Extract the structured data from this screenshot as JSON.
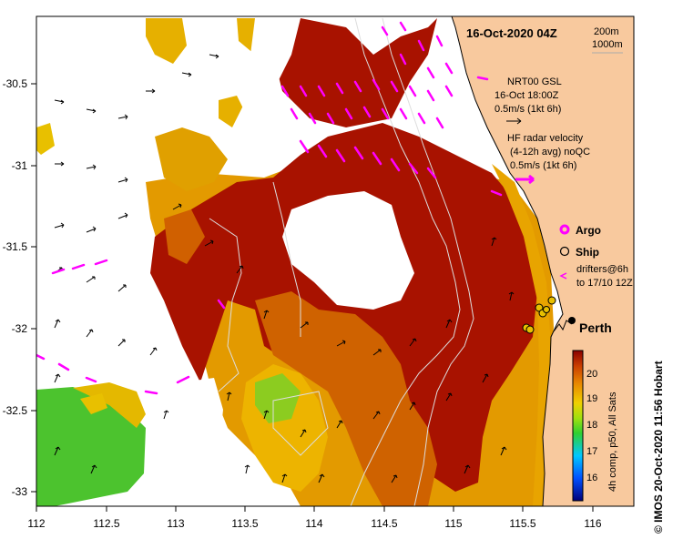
{
  "map": {
    "title": "16-Oct-2020 04Z",
    "depth_contours": [
      "200m",
      "1000m"
    ],
    "longitude_ticks": [
      "112",
      "112.5",
      "113",
      "113.5",
      "114",
      "114.5",
      "115",
      "115.5",
      "116"
    ],
    "latitude_ticks": [
      "-30.5",
      "-31",
      "-31.5",
      "-32",
      "-32.5",
      "-33"
    ],
    "model_legend": {
      "name": "NRT00 GSL",
      "time": "16-Oct 18:00Z",
      "scale": "0.5m/s (1kt 6h)"
    },
    "radar_legend": {
      "name": "HF radar velocity",
      "avg": "(4-12h avg) noQC",
      "scale": "0.5m/s (1kt 6h)"
    },
    "symbols": {
      "argo": "Argo",
      "ship": "Ship",
      "drifters_line1": "drifters@6h",
      "drifters_line2": "to 17/10 12Z"
    },
    "city": "Perth",
    "colorbar": {
      "ticks": [
        "20",
        "19",
        "18",
        "17",
        "16"
      ],
      "caption": "4h comp, p50, All Sats"
    },
    "credit": "© IMOS 20-Oct-2020 11:56 Hobart",
    "colors": {
      "land": "#f8c99e",
      "sst_dark": "#a61000",
      "sst_mid": "#d86a00",
      "sst_warm": "#e8a000",
      "sst_yellow": "#f2c400",
      "sst_green": "#3cbf2a",
      "radar_vector": "#ff00ff",
      "model_vector": "#000000"
    }
  }
}
